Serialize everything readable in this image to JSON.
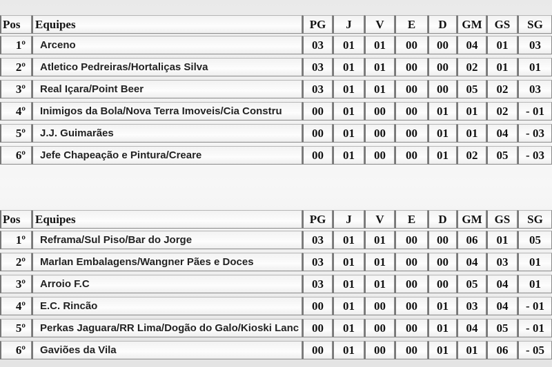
{
  "headers": [
    "Pos",
    "Equipes",
    "PG",
    "J",
    "V",
    "E",
    "D",
    "GM",
    "GS",
    "SG"
  ],
  "tables": [
    {
      "rows": [
        {
          "pos": "1º",
          "team": "Arceno",
          "vals": [
            "03",
            "01",
            "01",
            "00",
            "00",
            "04",
            "01",
            "03"
          ]
        },
        {
          "pos": "2º",
          "team": "Atletico Pedreiras/Hortaliças Silva",
          "vals": [
            "03",
            "01",
            "01",
            "00",
            "00",
            "02",
            "01",
            "01"
          ]
        },
        {
          "pos": "3º",
          "team": "Real  Içara/Point Beer",
          "vals": [
            "03",
            "01",
            "01",
            "00",
            "00",
            "05",
            "02",
            "03"
          ]
        },
        {
          "pos": "4º",
          "team": "Inimigos da Bola/Nova Terra Imoveis/Cia Constru",
          "vals": [
            "00",
            "01",
            "00",
            "00",
            "01",
            "01",
            "02",
            "- 01"
          ]
        },
        {
          "pos": "5º",
          "team": "J.J. Guimarães",
          "vals": [
            "00",
            "01",
            "00",
            "00",
            "01",
            "01",
            "04",
            "- 03"
          ]
        },
        {
          "pos": "6º",
          "team": "Jefe Chapeação e Pintura/Creare",
          "vals": [
            "00",
            "01",
            "00",
            "00",
            "01",
            "02",
            "05",
            "- 03"
          ]
        }
      ]
    },
    {
      "rows": [
        {
          "pos": "1º",
          "team": "Reframa/Sul Piso/Bar do Jorge",
          "vals": [
            "03",
            "01",
            "01",
            "00",
            "00",
            "06",
            "01",
            "05"
          ]
        },
        {
          "pos": "2º",
          "team": "Marlan Embalagens/Wangner Pães e Doces",
          "vals": [
            "03",
            "01",
            "01",
            "00",
            "00",
            "04",
            "03",
            "01"
          ]
        },
        {
          "pos": "3º",
          "team": "Arroio F.C",
          "vals": [
            "03",
            "01",
            "01",
            "00",
            "00",
            "05",
            "04",
            "01"
          ]
        },
        {
          "pos": "4º",
          "team": "E.C. Rincão",
          "vals": [
            "00",
            "01",
            "00",
            "00",
            "01",
            "03",
            "04",
            "- 01"
          ]
        },
        {
          "pos": "5º",
          "team": "Perkas Jaguara/RR Lima/Dogão do Galo/Kioski Lanc",
          "vals": [
            "00",
            "01",
            "00",
            "00",
            "01",
            "04",
            "05",
            "- 01"
          ]
        },
        {
          "pos": "6º",
          "team": "Gaviões da Vila",
          "vals": [
            "00",
            "01",
            "00",
            "00",
            "01",
            "01",
            "06",
            "- 05"
          ]
        }
      ]
    }
  ]
}
